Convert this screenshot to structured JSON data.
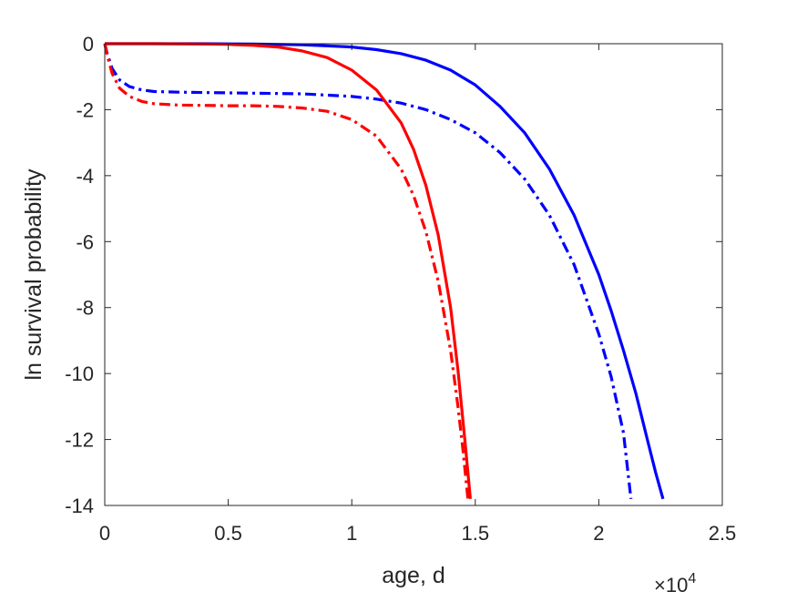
{
  "chart_data": {
    "type": "line",
    "title": "",
    "xlabel": "age, d",
    "ylabel": "ln survival probability",
    "x_multiplier_base": "×10",
    "x_multiplier_exp": "4",
    "xlim": [
      0,
      25000
    ],
    "ylim": [
      -14,
      0
    ],
    "x_ticks": [
      0,
      5000,
      10000,
      15000,
      20000,
      25000
    ],
    "x_tick_labels": [
      "0",
      "0.5",
      "1",
      "1.5",
      "2",
      "2.5"
    ],
    "y_ticks": [
      0,
      -2,
      -4,
      -6,
      -8,
      -10,
      -12,
      -14
    ],
    "y_tick_labels": [
      "0",
      "-2",
      "-4",
      "-6",
      "-8",
      "-10",
      "-12",
      "-14"
    ],
    "grid": false,
    "legend": "none",
    "series": [
      {
        "color": "#0000ff",
        "style": "solid",
        "x": [
          0,
          2000,
          4000,
          6000,
          8000,
          10000,
          11000,
          12000,
          13000,
          14000,
          15000,
          16000,
          17000,
          18000,
          19000,
          20000,
          20500,
          21000,
          21500,
          22000,
          22300,
          22600
        ],
        "y": [
          0,
          0,
          0,
          -0.01,
          -0.03,
          -0.1,
          -0.18,
          -0.3,
          -0.5,
          -0.8,
          -1.25,
          -1.9,
          -2.7,
          -3.8,
          -5.2,
          -7.0,
          -8.1,
          -9.3,
          -10.6,
          -12.1,
          -13.0,
          -13.8
        ]
      },
      {
        "color": "#0000ff",
        "style": "dashdot",
        "x": [
          0,
          100,
          300,
          600,
          1000,
          1500,
          2000,
          3000,
          4000,
          6000,
          8000,
          10000,
          11000,
          12000,
          13000,
          14000,
          15000,
          16000,
          17000,
          18000,
          19000,
          20000,
          20500,
          21000,
          21300
        ],
        "y": [
          0,
          -0.3,
          -0.75,
          -1.1,
          -1.3,
          -1.4,
          -1.45,
          -1.47,
          -1.48,
          -1.5,
          -1.52,
          -1.6,
          -1.68,
          -1.8,
          -2.0,
          -2.3,
          -2.7,
          -3.3,
          -4.1,
          -5.2,
          -6.7,
          -8.8,
          -10.1,
          -11.8,
          -13.8
        ]
      },
      {
        "color": "#ff0000",
        "style": "solid",
        "x": [
          0,
          2000,
          4000,
          5000,
          6000,
          7000,
          8000,
          9000,
          10000,
          11000,
          12000,
          12500,
          13000,
          13500,
          14000,
          14300,
          14600,
          14800
        ],
        "y": [
          0,
          0,
          -0.01,
          -0.02,
          -0.05,
          -0.1,
          -0.22,
          -0.42,
          -0.8,
          -1.4,
          -2.4,
          -3.2,
          -4.3,
          -5.8,
          -8.0,
          -9.9,
          -12.2,
          -13.8
        ]
      },
      {
        "color": "#ff0000",
        "style": "dashdot",
        "x": [
          0,
          100,
          300,
          600,
          1000,
          1500,
          2000,
          3000,
          4000,
          5000,
          6000,
          7000,
          8000,
          9000,
          10000,
          11000,
          12000,
          12500,
          13000,
          13500,
          14000,
          14300,
          14500,
          14700
        ],
        "y": [
          0,
          -0.35,
          -0.9,
          -1.35,
          -1.6,
          -1.75,
          -1.82,
          -1.86,
          -1.87,
          -1.88,
          -1.88,
          -1.9,
          -1.95,
          -2.05,
          -2.3,
          -2.8,
          -3.8,
          -4.6,
          -5.7,
          -7.2,
          -9.3,
          -11.0,
          -12.3,
          -13.8
        ]
      }
    ]
  }
}
